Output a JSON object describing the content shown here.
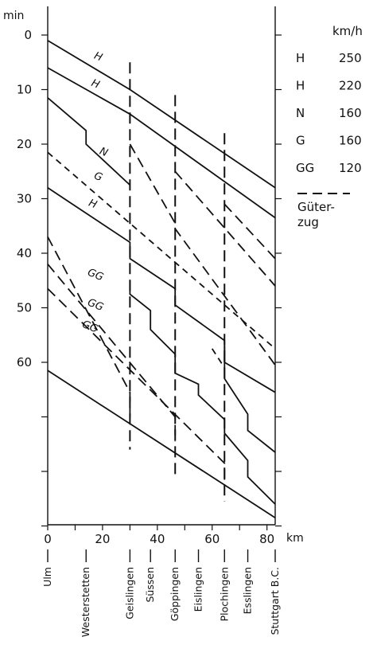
{
  "chart_data": {
    "type": "line",
    "y_axis": {
      "label": "min",
      "ticks": [
        0,
        10,
        20,
        30,
        40,
        50,
        60
      ],
      "range": [
        0,
        90
      ],
      "inverted": true
    },
    "x_axis": {
      "label": "km",
      "ticks": [
        0,
        20,
        40,
        60,
        80
      ],
      "range": [
        0,
        83
      ]
    },
    "stations": [
      {
        "name": "Ulm",
        "km": 0
      },
      {
        "name": "Westerstetten",
        "km": 14
      },
      {
        "name": "Geislingen",
        "km": 30
      },
      {
        "name": "Süssen",
        "km": 37.5
      },
      {
        "name": "Göppingen",
        "km": 46.5
      },
      {
        "name": "Eislingen",
        "km": 55
      },
      {
        "name": "Plochingen",
        "km": 64.5
      },
      {
        "name": "Esslingen",
        "km": 73
      },
      {
        "name": "Stuttgart B.C.",
        "km": 83
      }
    ],
    "legend": {
      "header": "km/h",
      "entries": [
        {
          "label": "H",
          "speed": "250"
        },
        {
          "label": "H",
          "speed": "220"
        },
        {
          "label": "N",
          "speed": "160"
        },
        {
          "label": "G",
          "speed": "160"
        },
        {
          "label": "GG",
          "speed": "120"
        }
      ],
      "freight_label_line1": "Güter-",
      "freight_label_line2": "zug"
    },
    "series": [
      {
        "name": "H",
        "style": "solid",
        "label_at": [
          18,
          4.5
        ],
        "points": [
          [
            0,
            1
          ],
          [
            30,
            10
          ],
          [
            83,
            28
          ]
        ]
      },
      {
        "name": "H",
        "style": "solid",
        "label_at": [
          17,
          9.5
        ],
        "points": [
          [
            0,
            6
          ],
          [
            30,
            14.5
          ],
          [
            83,
            33.5
          ]
        ]
      },
      {
        "name": "H",
        "style": "solid",
        "label_at": [
          16,
          31.5
        ],
        "points": [
          [
            0,
            28
          ],
          [
            30,
            38
          ],
          [
            30,
            41
          ],
          [
            46.5,
            46.5
          ],
          [
            46.5,
            49.5
          ],
          [
            64.5,
            56
          ],
          [
            64.5,
            60
          ],
          [
            83,
            65.5
          ]
        ]
      },
      {
        "name": "N",
        "style": "solid",
        "label_at": [
          20,
          22
        ],
        "points": [
          [
            0,
            11.5
          ],
          [
            14,
            17.5
          ],
          [
            14,
            20
          ],
          [
            30,
            27.5
          ]
        ]
      },
      {
        "name": "G",
        "style": "dash-short",
        "label_at": [
          18,
          26.5
        ],
        "points": [
          [
            0,
            21.5
          ],
          [
            83,
            57.5
          ]
        ]
      },
      {
        "name": "",
        "style": "dash-long",
        "points": [
          [
            30,
            20
          ],
          [
            46.5,
            34.5
          ],
          [
            46.5,
            35.5
          ],
          [
            83,
            60.5
          ]
        ]
      },
      {
        "name": "",
        "style": "dash-long",
        "points": [
          [
            46.5,
            25
          ],
          [
            83,
            46
          ]
        ]
      },
      {
        "name": "",
        "style": "dash-long",
        "points": [
          [
            64.5,
            31
          ],
          [
            83,
            41
          ]
        ]
      },
      {
        "name": "",
        "style": "solid",
        "points": [
          [
            30,
            45
          ],
          [
            30,
            47.5
          ],
          [
            37.5,
            50.5
          ],
          [
            37.5,
            54
          ],
          [
            46.5,
            58.5
          ],
          [
            46.5,
            62
          ],
          [
            55,
            64
          ],
          [
            55,
            66
          ],
          [
            64.5,
            70.5
          ],
          [
            64.5,
            73
          ],
          [
            73,
            78
          ],
          [
            73,
            81
          ],
          [
            83,
            86
          ]
        ]
      },
      {
        "name": "",
        "style": "solid",
        "points": [
          [
            64.5,
            57
          ],
          [
            64.5,
            63
          ],
          [
            73,
            69.5
          ],
          [
            73,
            72.5
          ],
          [
            83,
            76.5
          ]
        ]
      },
      {
        "name": "",
        "style": "solid",
        "points": [
          [
            0,
            61.5
          ],
          [
            83,
            88.5
          ]
        ]
      },
      {
        "name": "",
        "style": "dash-short",
        "points": [
          [
            60,
            57.5
          ],
          [
            64.5,
            61
          ]
        ]
      },
      {
        "name": "GG",
        "style": "dash-long",
        "label_at": [
          17,
          44.5
        ],
        "points": [
          [
            0,
            37
          ],
          [
            30,
            65.5
          ],
          [
            30,
            70
          ]
        ]
      },
      {
        "name": "GG",
        "style": "dash-long",
        "label_at": [
          17,
          50
        ],
        "points": [
          [
            0,
            42
          ],
          [
            46.5,
            70
          ],
          [
            46.5,
            74.5
          ]
        ]
      },
      {
        "name": "GG",
        "style": "dash-long",
        "label_at": [
          15,
          54
        ],
        "points": [
          [
            0,
            46.5
          ],
          [
            64.5,
            78.5
          ],
          [
            64.5,
            82
          ]
        ]
      }
    ],
    "station_markers": [
      {
        "km": 30,
        "from": 5,
        "to": 76
      },
      {
        "km": 46.5,
        "from": 11,
        "to": 80.5
      },
      {
        "km": 64.5,
        "from": 18,
        "to": 85.5
      }
    ],
    "grid": false
  }
}
